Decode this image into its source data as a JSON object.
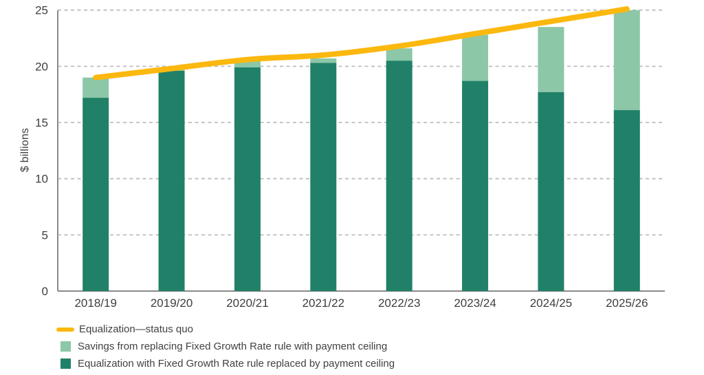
{
  "chart_data": {
    "type": "bar",
    "subtype": "stacked-bars-with-line-overlay",
    "title": "",
    "xlabel": "",
    "ylabel": "$ billions",
    "ylim": [
      0,
      25
    ],
    "yticks": [
      0,
      5,
      10,
      15,
      20,
      25
    ],
    "grid": "dashed-horizontal",
    "legend_position": "bottom-left",
    "categories": [
      "2018/19",
      "2019/20",
      "2020/21",
      "2021/22",
      "2022/23",
      "2023/24",
      "2024/25",
      "2025/26"
    ],
    "series": [
      {
        "name": "Equalization with Fixed Growth Rate rule replaced by payment ceiling",
        "type": "bar-stack-bottom",
        "color": "#218068",
        "values": [
          17.2,
          19.6,
          19.9,
          20.3,
          20.5,
          18.7,
          17.7,
          16.1
        ]
      },
      {
        "name": "Savings from replacing Fixed Growth Rate rule with payment ceiling",
        "type": "bar-stack-top",
        "color": "#8cc7a7",
        "values": [
          1.8,
          0.2,
          0.6,
          0.4,
          1.1,
          4.1,
          5.8,
          8.9
        ]
      },
      {
        "name": "Equalization—status quo",
        "type": "line",
        "color": "#fbb80e",
        "values": [
          19.0,
          19.8,
          20.6,
          21.0,
          21.8,
          22.9,
          24.0,
          25.1
        ]
      }
    ],
    "stack_totals": [
      19.0,
      19.8,
      20.5,
      20.7,
      21.6,
      22.8,
      23.5,
      25.0
    ],
    "legend": [
      {
        "swatch": "line",
        "color": "#fbb80e",
        "label": "Equalization—status quo"
      },
      {
        "swatch": "square",
        "color": "#8cc7a7",
        "label": "Savings from replacing Fixed Growth Rate rule with payment ceiling"
      },
      {
        "swatch": "square",
        "color": "#218068",
        "label": "Equalization with Fixed Growth Rate rule replaced by payment ceiling"
      }
    ],
    "colors": {
      "grid": "#bdbdbd",
      "axis": "#8a8a8a",
      "tick_text": "#3e3e3e",
      "legend_text": "#414141",
      "background": "#ffffff"
    }
  }
}
